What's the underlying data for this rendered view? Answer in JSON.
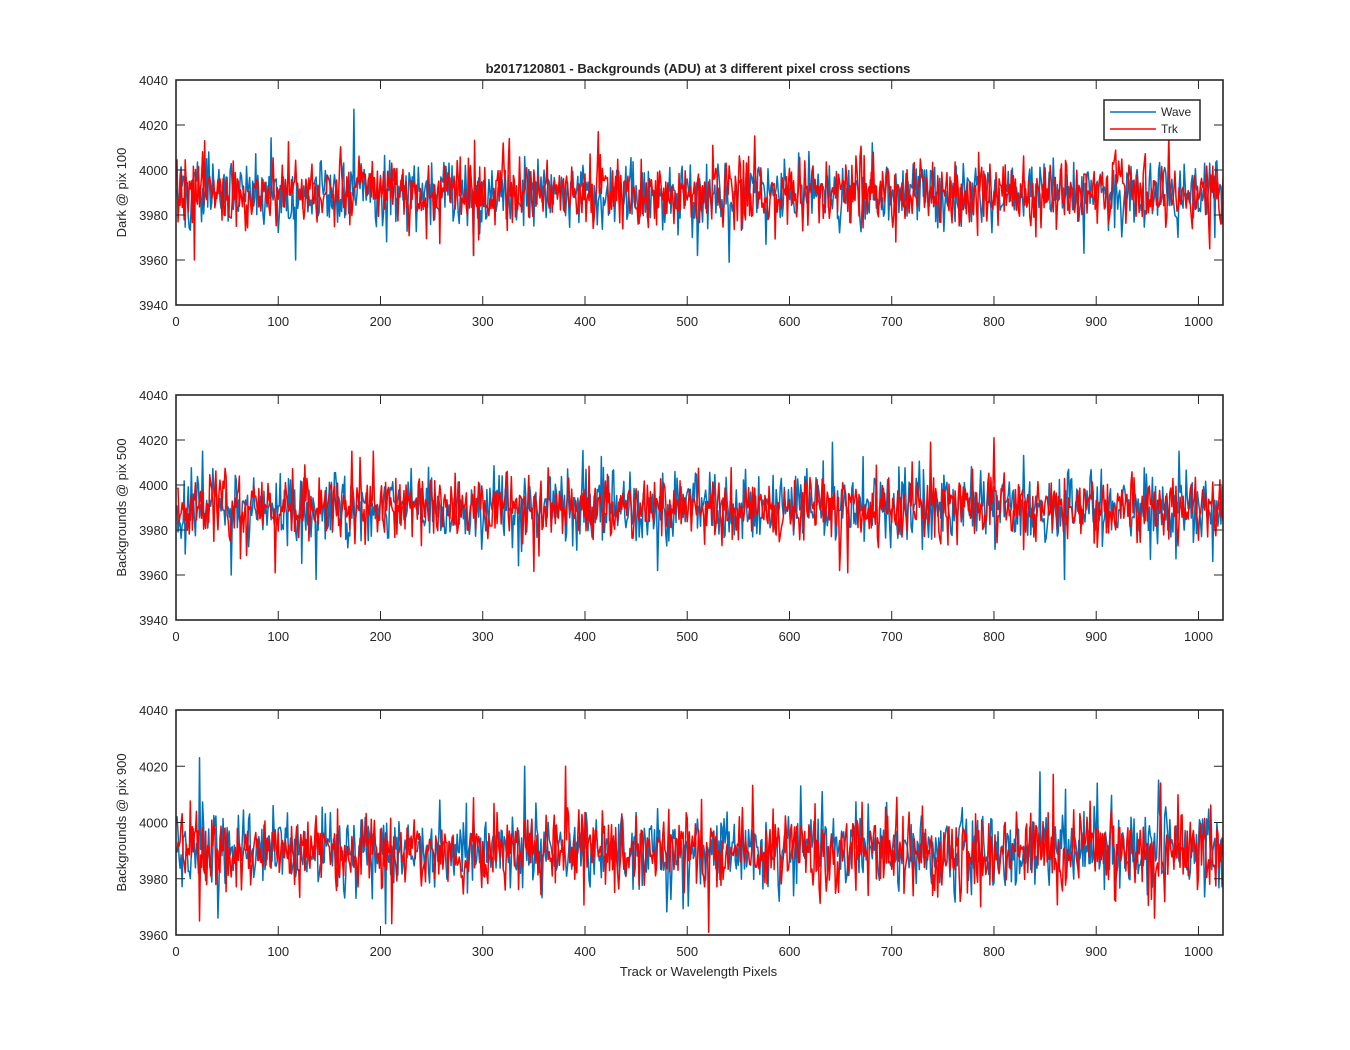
{
  "chart_data": [
    {
      "type": "line",
      "title": "b2017120801 - Backgrounds (ADU) at 3 different pixel cross sections",
      "xlabel": "",
      "ylabel": "Dark @ pix 100",
      "xlim": [
        0,
        1024
      ],
      "ylim": [
        3940,
        4040
      ],
      "x_ticks": [
        0,
        100,
        200,
        300,
        400,
        500,
        600,
        700,
        800,
        900,
        1000
      ],
      "y_ticks": [
        3940,
        3960,
        3980,
        4000,
        4020,
        4040
      ],
      "legend": {
        "position": "top-right",
        "entries": [
          "Wave",
          "Trk"
        ]
      },
      "series": [
        {
          "name": "Wave",
          "color": "#0072BD",
          "n_points": 1024,
          "mean": 3990,
          "std": 7.5,
          "seed": 101,
          "peaks": [
            [
              173,
              4027
            ],
            [
              116,
              3960
            ],
            [
              29,
              4005
            ],
            [
              31,
              4008
            ],
            [
              290,
              3962
            ],
            [
              509,
              3962
            ],
            [
              540,
              3959
            ],
            [
              887,
              3963
            ],
            [
              1010,
              4003
            ]
          ]
        },
        {
          "name": "Trk",
          "color": "#FF0000",
          "n_points": 1024,
          "mean": 3990,
          "std": 7.5,
          "seed": 202,
          "peaks": [
            [
              17,
              3960
            ],
            [
              27,
              4013
            ],
            [
              55,
              4004
            ],
            [
              319,
              4012
            ],
            [
              325,
              4014
            ],
            [
              412,
              4017
            ],
            [
              290,
              3962
            ],
            [
              1010,
              3965
            ]
          ]
        }
      ]
    },
    {
      "type": "line",
      "title": "",
      "xlabel": "",
      "ylabel": "Backgrounds @ pix 500",
      "xlim": [
        0,
        1024
      ],
      "ylim": [
        3940,
        4040
      ],
      "x_ticks": [
        0,
        100,
        200,
        300,
        400,
        500,
        600,
        700,
        800,
        900,
        1000
      ],
      "y_ticks": [
        3940,
        3960,
        3980,
        4000,
        4020,
        4040
      ],
      "series": [
        {
          "name": "Wave",
          "color": "#0072BD",
          "n_points": 1024,
          "mean": 3990,
          "std": 7.5,
          "seed": 303,
          "peaks": [
            [
              25,
              4015
            ],
            [
              53,
              3960
            ],
            [
              136,
              3958
            ],
            [
              641,
              4019
            ],
            [
              470,
              4012
            ],
            [
              470,
              3962
            ],
            [
              868,
              3958
            ],
            [
              980,
              4015
            ],
            [
              1013,
              3966
            ]
          ]
        },
        {
          "name": "Trk",
          "color": "#FF0000",
          "n_points": 1024,
          "mean": 3990,
          "std": 7.5,
          "seed": 404,
          "peaks": [
            [
              96,
              3961
            ],
            [
              171,
              4015
            ],
            [
              192,
              4015
            ],
            [
              737,
              4019
            ],
            [
              799,
              4021
            ],
            [
              648,
              3962
            ],
            [
              656,
              3961
            ],
            [
              778,
              4007
            ]
          ]
        }
      ]
    },
    {
      "type": "line",
      "title": "",
      "xlabel": "Track or Wavelength Pixels",
      "ylabel": "Backgrounds @ pix 900",
      "xlim": [
        0,
        1024
      ],
      "ylim": [
        3960,
        4040
      ],
      "x_ticks": [
        0,
        100,
        200,
        300,
        400,
        500,
        600,
        700,
        800,
        900,
        1000
      ],
      "y_ticks": [
        3960,
        3980,
        4000,
        4020,
        4040
      ],
      "series": [
        {
          "name": "Wave",
          "color": "#0072BD",
          "n_points": 1024,
          "mean": 3990,
          "std": 7.0,
          "seed": 505,
          "peaks": [
            [
              22,
              4023
            ],
            [
              340,
              4020
            ],
            [
              610,
              4013
            ],
            [
              844,
              4018
            ],
            [
              900,
              4014
            ],
            [
              204,
              3964
            ],
            [
              40,
              3966
            ],
            [
              960,
              4015
            ]
          ]
        },
        {
          "name": "Trk",
          "color": "#FF0000",
          "n_points": 1024,
          "mean": 3990,
          "std": 7.0,
          "seed": 606,
          "peaks": [
            [
              22,
              3965
            ],
            [
              380,
              4020
            ],
            [
              520,
              3961
            ],
            [
              210,
              3964
            ],
            [
              956,
              3966
            ],
            [
              962,
              4014
            ],
            [
              704,
              4009
            ]
          ]
        }
      ]
    }
  ]
}
